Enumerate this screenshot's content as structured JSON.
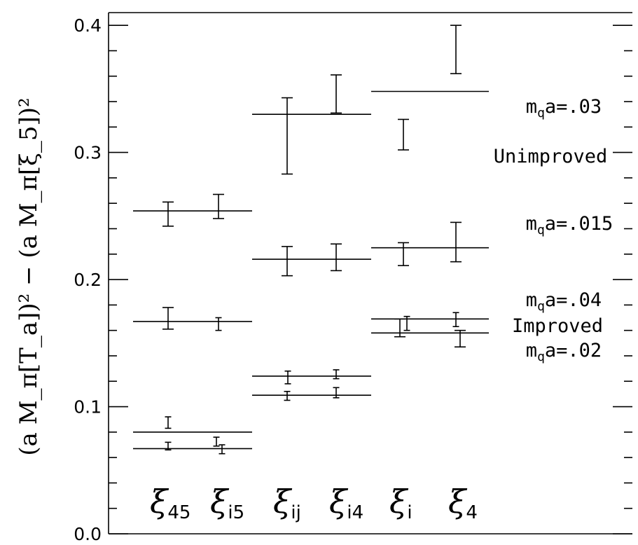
{
  "chart_data": {
    "type": "errorbar",
    "title": "",
    "ylabel": "(a M_π[T_a])² − (a M_π[ξ_5])²",
    "ylim": [
      0.0,
      0.41
    ],
    "yticks": [
      "0.0",
      "0.1",
      "0.2",
      "0.3",
      "0.4"
    ],
    "categories": [
      {
        "symbol": "ξ",
        "sub": "45"
      },
      {
        "symbol": "ξ",
        "sub": "i5"
      },
      {
        "symbol": "ξ",
        "sub": "ij"
      },
      {
        "symbol": "ξ",
        "sub": "i4"
      },
      {
        "symbol": "ξ",
        "sub": "i"
      },
      {
        "symbol": "ξ",
        "sub": "4"
      }
    ],
    "annotations": [
      {
        "text": "mqa=.03",
        "base": "m",
        "sub": "q",
        "rest": "a=.03"
      },
      {
        "text": "Unimproved"
      },
      {
        "text": "mqa=.015",
        "base": "m",
        "sub": "q",
        "rest": "a=.015"
      },
      {
        "text": "mqa=.04",
        "base": "m",
        "sub": "q",
        "rest": "a=.04"
      },
      {
        "text": "Improved"
      },
      {
        "text": "mqa=.02",
        "base": "m",
        "sub": "q",
        "rest": "a=.02"
      }
    ],
    "series": [
      {
        "points": [
          {
            "cat": 0,
            "low": 0.242,
            "high": 0.261
          },
          {
            "cat": 1,
            "low": 0.248,
            "high": 0.267
          },
          {
            "cat": 2,
            "low": 0.283,
            "high": 0.343
          },
          {
            "cat": 3,
            "low": 0.331,
            "high": 0.361
          },
          {
            "cat": 4,
            "low": 0.302,
            "high": 0.326
          },
          {
            "cat": 5,
            "low": 0.362,
            "high": 0.4
          }
        ],
        "levels": [
          {
            "from": 0,
            "to": 1,
            "value": 0.254
          },
          {
            "from": 2,
            "to": 3,
            "value": 0.33
          },
          {
            "from": 4,
            "to": 5,
            "value": 0.348
          }
        ]
      },
      {
        "points": [
          {
            "cat": 0,
            "low": 0.161,
            "high": 0.178
          },
          {
            "cat": 1,
            "low": 0.16,
            "high": 0.17
          },
          {
            "cat": 2,
            "low": 0.203,
            "high": 0.226
          },
          {
            "cat": 3,
            "low": 0.207,
            "high": 0.228
          },
          {
            "cat": 4,
            "low": 0.211,
            "high": 0.229
          },
          {
            "cat": 5,
            "low": 0.214,
            "high": 0.245
          }
        ],
        "levels": [
          {
            "from": 0,
            "to": 1,
            "value": 0.167
          },
          {
            "from": 2,
            "to": 3,
            "value": 0.216
          },
          {
            "from": 4,
            "to": 5,
            "value": 0.225
          }
        ]
      },
      {
        "points": [
          {
            "cat": 0,
            "low": 0.083,
            "high": 0.092
          },
          {
            "cat": 1,
            "low": 0.069,
            "high": 0.076
          },
          {
            "cat": 2,
            "low": 0.118,
            "high": 0.128
          },
          {
            "cat": 3,
            "low": 0.122,
            "high": 0.129
          },
          {
            "cat": 4,
            "low": 0.16,
            "high": 0.171
          },
          {
            "cat": 5,
            "low": 0.163,
            "high": 0.174
          }
        ],
        "levels": [
          {
            "from": 0,
            "to": 1,
            "value": 0.08
          },
          {
            "from": 2,
            "to": 3,
            "value": 0.124
          },
          {
            "from": 4,
            "to": 5,
            "value": 0.169
          }
        ]
      },
      {
        "points": [
          {
            "cat": 0,
            "low": 0.066,
            "high": 0.072
          },
          {
            "cat": 1,
            "low": 0.063,
            "high": 0.07
          },
          {
            "cat": 2,
            "low": 0.105,
            "high": 0.112
          },
          {
            "cat": 3,
            "low": 0.107,
            "high": 0.115
          },
          {
            "cat": 4,
            "low": 0.155,
            "high": 0.169
          },
          {
            "cat": 5,
            "low": 0.147,
            "high": 0.16
          }
        ],
        "levels": [
          {
            "from": 0,
            "to": 1,
            "value": 0.067
          },
          {
            "from": 2,
            "to": 3,
            "value": 0.109
          },
          {
            "from": 4,
            "to": 5,
            "value": 0.158
          }
        ]
      }
    ]
  }
}
